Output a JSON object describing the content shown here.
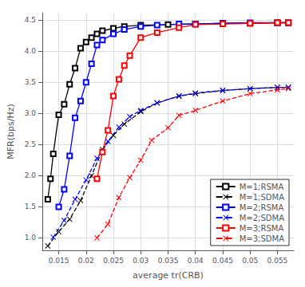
{
  "chart_data": {
    "type": "line",
    "xlabel": "average tr(CRB)",
    "ylabel": "MFR(bps/Hz)",
    "xlim": [
      0.012,
      0.058
    ],
    "ylim": [
      0.8,
      4.62
    ],
    "xticks": [
      0.015,
      0.02,
      0.025,
      0.03,
      0.035,
      0.04,
      0.045,
      0.05,
      0.055
    ],
    "yticks": [
      {
        "value": 1.0,
        "label": "1.0"
      },
      1.5,
      {
        "value": 2.0,
        "label": "2.0"
      },
      2.5,
      {
        "value": 3.0,
        "label": "3.0"
      },
      3.5,
      {
        "value": 4.0,
        "label": "4.0"
      },
      4.5
    ],
    "grid": true,
    "legend": "lower right",
    "series": [
      {
        "name": "M=1;RSMA",
        "color": "#000000",
        "marker": "square",
        "line_style": "solid",
        "x": [
          0.013,
          0.0135,
          0.014,
          0.015,
          0.016,
          0.017,
          0.018,
          0.019,
          0.02,
          0.021,
          0.022,
          0.023,
          0.025,
          0.027,
          0.03,
          0.035,
          0.04,
          0.045,
          0.05,
          0.055,
          0.057
        ],
        "values": [
          1.62,
          1.95,
          2.35,
          2.98,
          3.15,
          3.47,
          3.73,
          4.05,
          4.15,
          4.22,
          4.28,
          4.33,
          4.37,
          4.4,
          4.42,
          4.43,
          4.44,
          4.45,
          4.45,
          4.46,
          4.46
        ]
      },
      {
        "name": "M=1;SDMA",
        "color": "#000000",
        "marker": "x",
        "line_style": "dashed",
        "x": [
          0.013,
          0.015,
          0.017,
          0.019,
          0.021,
          0.023,
          0.025,
          0.027,
          0.03,
          0.033,
          0.037,
          0.04,
          0.045,
          0.05,
          0.055,
          0.057
        ],
        "values": [
          0.87,
          1.1,
          1.3,
          1.6,
          2.0,
          2.42,
          2.65,
          2.83,
          3.03,
          3.17,
          3.28,
          3.32,
          3.37,
          3.4,
          3.42,
          3.42
        ]
      },
      {
        "name": "M=2;RSMA",
        "color": "#0000FF",
        "marker": "square",
        "line_style": "solid",
        "x": [
          0.015,
          0.016,
          0.017,
          0.018,
          0.019,
          0.02,
          0.021,
          0.022,
          0.023,
          0.025,
          0.027,
          0.03,
          0.033,
          0.037,
          0.04,
          0.045,
          0.05,
          0.055,
          0.057
        ],
        "values": [
          1.5,
          1.78,
          2.32,
          2.93,
          3.2,
          3.5,
          3.8,
          4.1,
          4.18,
          4.28,
          4.35,
          4.4,
          4.42,
          4.44,
          4.44,
          4.45,
          4.46,
          4.46,
          4.46
        ]
      },
      {
        "name": "M=2;SDMA",
        "color": "#0000FF",
        "marker": "x",
        "line_style": "dashed",
        "x": [
          0.014,
          0.016,
          0.018,
          0.02,
          0.022,
          0.024,
          0.026,
          0.028,
          0.03,
          0.033,
          0.037,
          0.04,
          0.045,
          0.05,
          0.055,
          0.057
        ],
        "values": [
          1.01,
          1.28,
          1.62,
          1.93,
          2.28,
          2.55,
          2.78,
          2.95,
          3.05,
          3.17,
          3.28,
          3.33,
          3.37,
          3.4,
          3.42,
          3.42
        ]
      },
      {
        "name": "M=3;RSMA",
        "color": "#FF0000",
        "marker": "square",
        "line_style": "solid",
        "x": [
          0.022,
          0.023,
          0.024,
          0.025,
          0.026,
          0.027,
          0.028,
          0.03,
          0.033,
          0.037,
          0.04,
          0.045,
          0.05,
          0.055,
          0.057
        ],
        "values": [
          1.95,
          2.38,
          2.73,
          3.28,
          3.55,
          3.77,
          3.93,
          4.22,
          4.3,
          4.38,
          4.43,
          4.44,
          4.45,
          4.46,
          4.46
        ]
      },
      {
        "name": "M=3;SDMA",
        "color": "#FF0000",
        "marker": "x",
        "line_style": "dashed",
        "x": [
          0.022,
          0.024,
          0.026,
          0.028,
          0.03,
          0.032,
          0.035,
          0.037,
          0.04,
          0.045,
          0.05,
          0.055,
          0.057
        ],
        "values": [
          1.0,
          1.22,
          1.65,
          1.97,
          2.25,
          2.57,
          2.77,
          2.97,
          3.05,
          3.2,
          3.32,
          3.38,
          3.4
        ]
      }
    ]
  }
}
